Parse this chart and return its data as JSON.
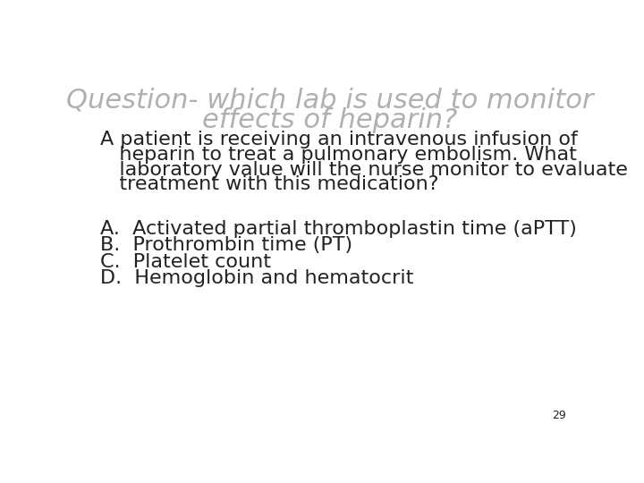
{
  "title_line1": "Question- which lab is used to monitor",
  "title_line2": "effects of heparin?",
  "title_color": "#b0b0b0",
  "title_fontsize": 22,
  "title_style": "italic",
  "body_line1": "A patient is receiving an intravenous infusion of",
  "body_lines": [
    "A patient is receiving an intravenous infusion of",
    "   heparin to treat a pulmonary embolism. What",
    "   laboratory value will the nurse monitor to evaluate",
    "   treatment with this medication?"
  ],
  "body_fontsize": 16,
  "body_color": "#222222",
  "options": [
    "A.  Activated partial thromboplastin time (aPTT)",
    "B.  Prothrombin time (PT)",
    "C.  Platelet count",
    "D.  Hemoglobin and hematocrit"
  ],
  "options_fontsize": 16,
  "options_color": "#222222",
  "page_number": "29",
  "background_color": "#ffffff"
}
